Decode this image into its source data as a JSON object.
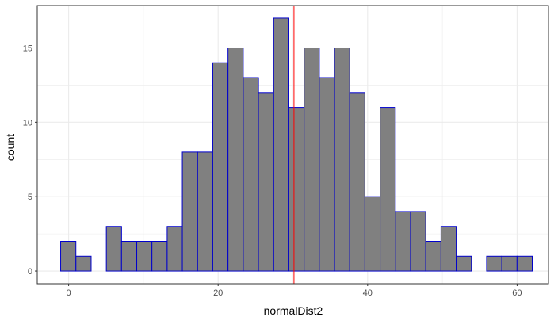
{
  "chart_data": {
    "type": "bar",
    "xlabel": "normalDist2",
    "ylabel": "count",
    "xlim": [
      -4.2,
      64.2
    ],
    "ylim": [
      -0.85,
      17.85
    ],
    "x_ticks": [
      0,
      20,
      40,
      60
    ],
    "y_ticks": [
      0,
      5,
      10,
      15
    ],
    "grid": true,
    "bin_width": 2.0355,
    "bins": [
      {
        "x": -0.05,
        "count": 2
      },
      {
        "x": 1.99,
        "count": 1
      },
      {
        "x": 4.02,
        "count": 0
      },
      {
        "x": 6.06,
        "count": 3
      },
      {
        "x": 8.09,
        "count": 2
      },
      {
        "x": 10.13,
        "count": 2
      },
      {
        "x": 12.16,
        "count": 2
      },
      {
        "x": 14.2,
        "count": 3
      },
      {
        "x": 16.23,
        "count": 8
      },
      {
        "x": 18.27,
        "count": 8
      },
      {
        "x": 20.3,
        "count": 14
      },
      {
        "x": 22.34,
        "count": 15
      },
      {
        "x": 24.38,
        "count": 13
      },
      {
        "x": 26.41,
        "count": 12
      },
      {
        "x": 28.45,
        "count": 17
      },
      {
        "x": 30.48,
        "count": 11
      },
      {
        "x": 32.52,
        "count": 15
      },
      {
        "x": 34.55,
        "count": 13
      },
      {
        "x": 36.59,
        "count": 15
      },
      {
        "x": 38.62,
        "count": 12
      },
      {
        "x": 40.66,
        "count": 5
      },
      {
        "x": 42.69,
        "count": 11
      },
      {
        "x": 44.73,
        "count": 4
      },
      {
        "x": 46.76,
        "count": 4
      },
      {
        "x": 48.8,
        "count": 2
      },
      {
        "x": 50.84,
        "count": 3
      },
      {
        "x": 52.87,
        "count": 1
      },
      {
        "x": 54.91,
        "count": 0
      },
      {
        "x": 56.94,
        "count": 1
      },
      {
        "x": 58.98,
        "count": 1
      },
      {
        "x": 61.01,
        "count": 1
      }
    ],
    "vline": {
      "x": 30.15,
      "color": "#ff0000"
    },
    "colors": {
      "bar_fill": "#808080",
      "bar_stroke": "#0000cc",
      "grid": "#ebebeb",
      "panel_border": "#333333"
    }
  }
}
